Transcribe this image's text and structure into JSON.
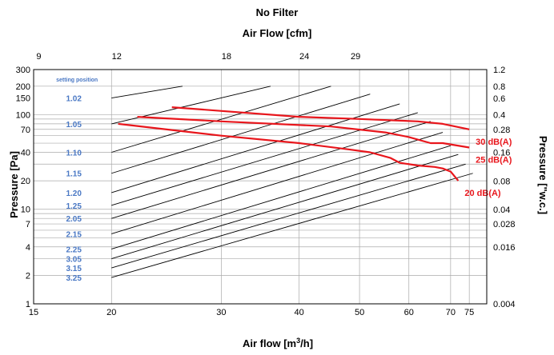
{
  "chart_data": {
    "type": "line",
    "title": "No Filter",
    "subtitle": "Air Flow [cfm]",
    "xlabel": "Air flow [m³/h]",
    "ylabel": "Pressure [Pa]",
    "ylabel_right": "Pressure [\"w.c.]",
    "x_scale": "log",
    "y_scale": "log",
    "xlim": [
      15,
      80
    ],
    "ylim": [
      1,
      300
    ],
    "x_ticks": [
      "15",
      "20",
      "30",
      "40",
      "50",
      "60",
      "70",
      "75"
    ],
    "y_ticks": [
      "1",
      "2",
      "4",
      "7",
      "10",
      "20",
      "40",
      "70",
      "100",
      "150",
      "200",
      "300"
    ],
    "top_ticks": [
      "9",
      "12",
      "18",
      "24",
      "29"
    ],
    "right_ticks": [
      "0.004",
      "0.016",
      "0.028",
      "0.04",
      "0.08",
      "0.16",
      "0.28",
      "0.4",
      "0.6",
      "0.8",
      "1.2"
    ],
    "grid": true,
    "legend_header": "setting position",
    "setting_positions": [
      {
        "label": "1.02",
        "x": [
          20,
          26
        ],
        "y": [
          150,
          200
        ]
      },
      {
        "label": "1.05",
        "x": [
          20,
          36
        ],
        "y": [
          80,
          200
        ]
      },
      {
        "label": "1.10",
        "x": [
          20,
          45
        ],
        "y": [
          40,
          200
        ]
      },
      {
        "label": "1.15",
        "x": [
          20,
          52
        ],
        "y": [
          24,
          165
        ]
      },
      {
        "label": "1.20",
        "x": [
          20,
          58
        ],
        "y": [
          15,
          130
        ]
      },
      {
        "label": "1.25",
        "x": [
          20,
          62
        ],
        "y": [
          11,
          105
        ]
      },
      {
        "label": "2.05",
        "x": [
          20,
          65
        ],
        "y": [
          8,
          85
        ]
      },
      {
        "label": "2.15",
        "x": [
          20,
          68
        ],
        "y": [
          5.5,
          65
        ]
      },
      {
        "label": "2.25",
        "x": [
          20,
          70
        ],
        "y": [
          3.8,
          47
        ]
      },
      {
        "label": "3.05",
        "x": [
          20,
          72
        ],
        "y": [
          3,
          38
        ]
      },
      {
        "label": "3.15",
        "x": [
          20,
          74
        ],
        "y": [
          2.4,
          30
        ]
      },
      {
        "label": "3.25",
        "x": [
          20,
          76
        ],
        "y": [
          1.9,
          24
        ]
      }
    ],
    "series": [
      {
        "name": "30 dB(A)",
        "x": [
          25,
          40,
          50,
          62,
          68,
          75
        ],
        "y": [
          120,
          95,
          90,
          85,
          80,
          70
        ]
      },
      {
        "name": "25 dB(A)",
        "x": [
          22,
          30,
          45,
          55,
          60,
          65,
          68,
          75
        ],
        "y": [
          95,
          85,
          75,
          65,
          58,
          50,
          50,
          45
        ]
      },
      {
        "name": "20 dB(A)",
        "x": [
          20.5,
          30,
          40,
          48,
          52,
          56,
          58,
          62,
          66,
          68,
          70,
          72
        ],
        "y": [
          80,
          60,
          50,
          43,
          40,
          35,
          31,
          29,
          28,
          27,
          25,
          20
        ]
      }
    ],
    "colors": {
      "curves": "#e8161c",
      "setting_labels": "#4a78c4"
    }
  }
}
